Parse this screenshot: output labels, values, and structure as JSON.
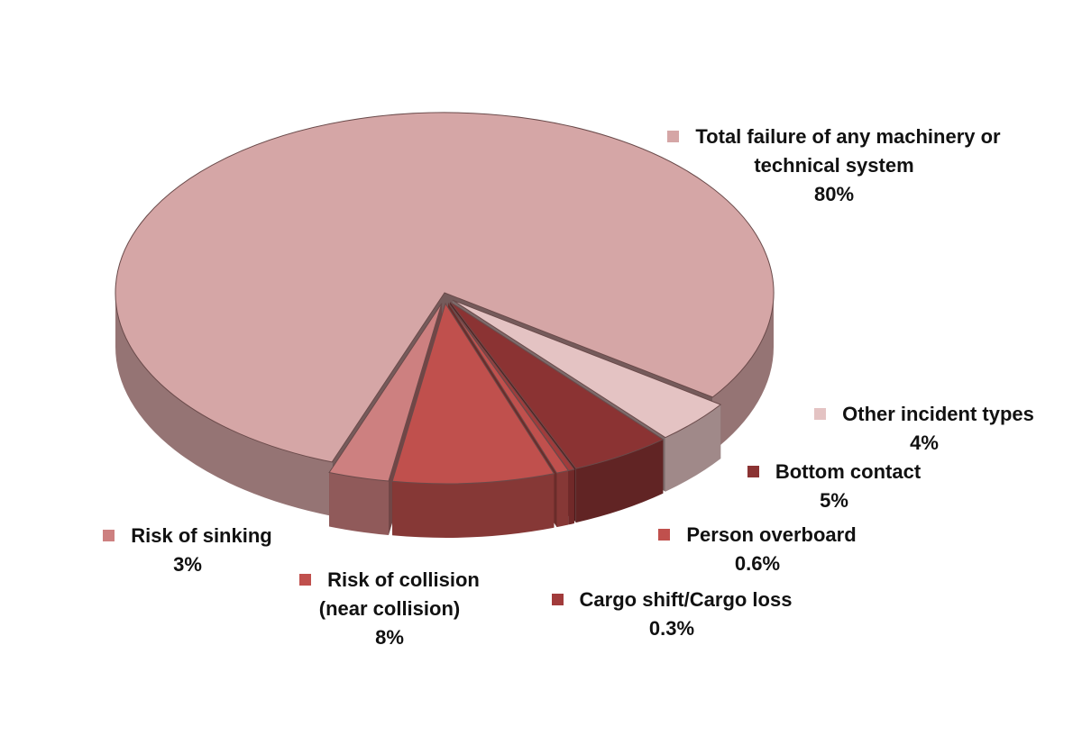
{
  "chart_data": {
    "type": "pie3d",
    "categories": [
      "Total failure of any machinery or technical system",
      "Other incident types",
      "Bottom contact",
      "Cargo shift/Cargo loss",
      "Person overboard",
      "Risk of collision (near collision)",
      "Risk of sinking"
    ],
    "values": [
      80,
      4,
      5,
      0.3,
      0.6,
      8,
      3
    ],
    "value_labels": [
      "80%",
      "4%",
      "5%",
      "0.3%",
      "0.6%",
      "8%",
      "3%"
    ],
    "colors": [
      "#d5a6a6",
      "#e4c3c3",
      "#8b3333",
      "#a13b3b",
      "#c0504d",
      "#c0504d",
      "#cd8080"
    ]
  }
}
